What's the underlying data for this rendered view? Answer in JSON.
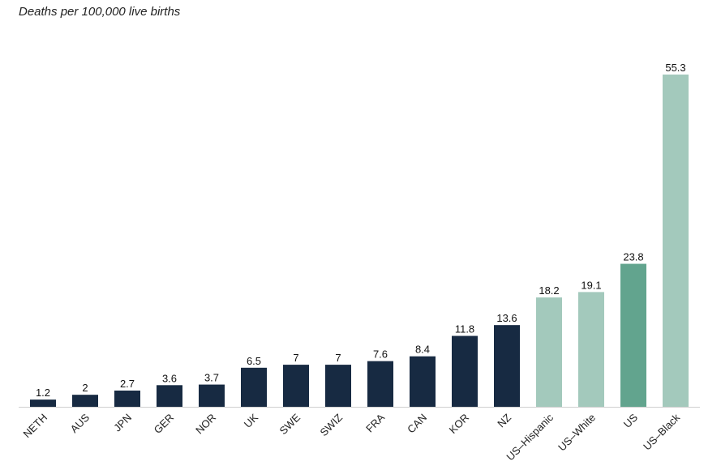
{
  "chart_data": {
    "type": "bar",
    "ylabel": "Deaths per 100,000 live births",
    "categories": [
      "NETH",
      "AUS",
      "JPN",
      "GER",
      "NOR",
      "UK",
      "SWE",
      "SWIZ",
      "FRA",
      "CAN",
      "KOR",
      "NZ",
      "US–Hispanic",
      "US–White",
      "US",
      "US–Black"
    ],
    "values": [
      1.2,
      2,
      2.7,
      3.6,
      3.7,
      6.5,
      7,
      7,
      7.6,
      8.4,
      11.8,
      13.6,
      18.2,
      19.1,
      23.8,
      55.3
    ],
    "value_labels": [
      "1.2",
      "2",
      "2.7",
      "3.6",
      "3.7",
      "6.5",
      "7",
      "7",
      "7.6",
      "8.4",
      "11.8",
      "13.6",
      "18.2",
      "19.1",
      "23.8",
      "55.3"
    ],
    "colors": [
      "#172a42",
      "#172a42",
      "#172a42",
      "#172a42",
      "#172a42",
      "#172a42",
      "#172a42",
      "#172a42",
      "#172a42",
      "#172a42",
      "#172a42",
      "#172a42",
      "#a3c9bc",
      "#a3c9bc",
      "#62a48e",
      "#a3c9bc"
    ],
    "ylim": [
      0,
      57
    ],
    "grid": false,
    "legend": "none"
  }
}
